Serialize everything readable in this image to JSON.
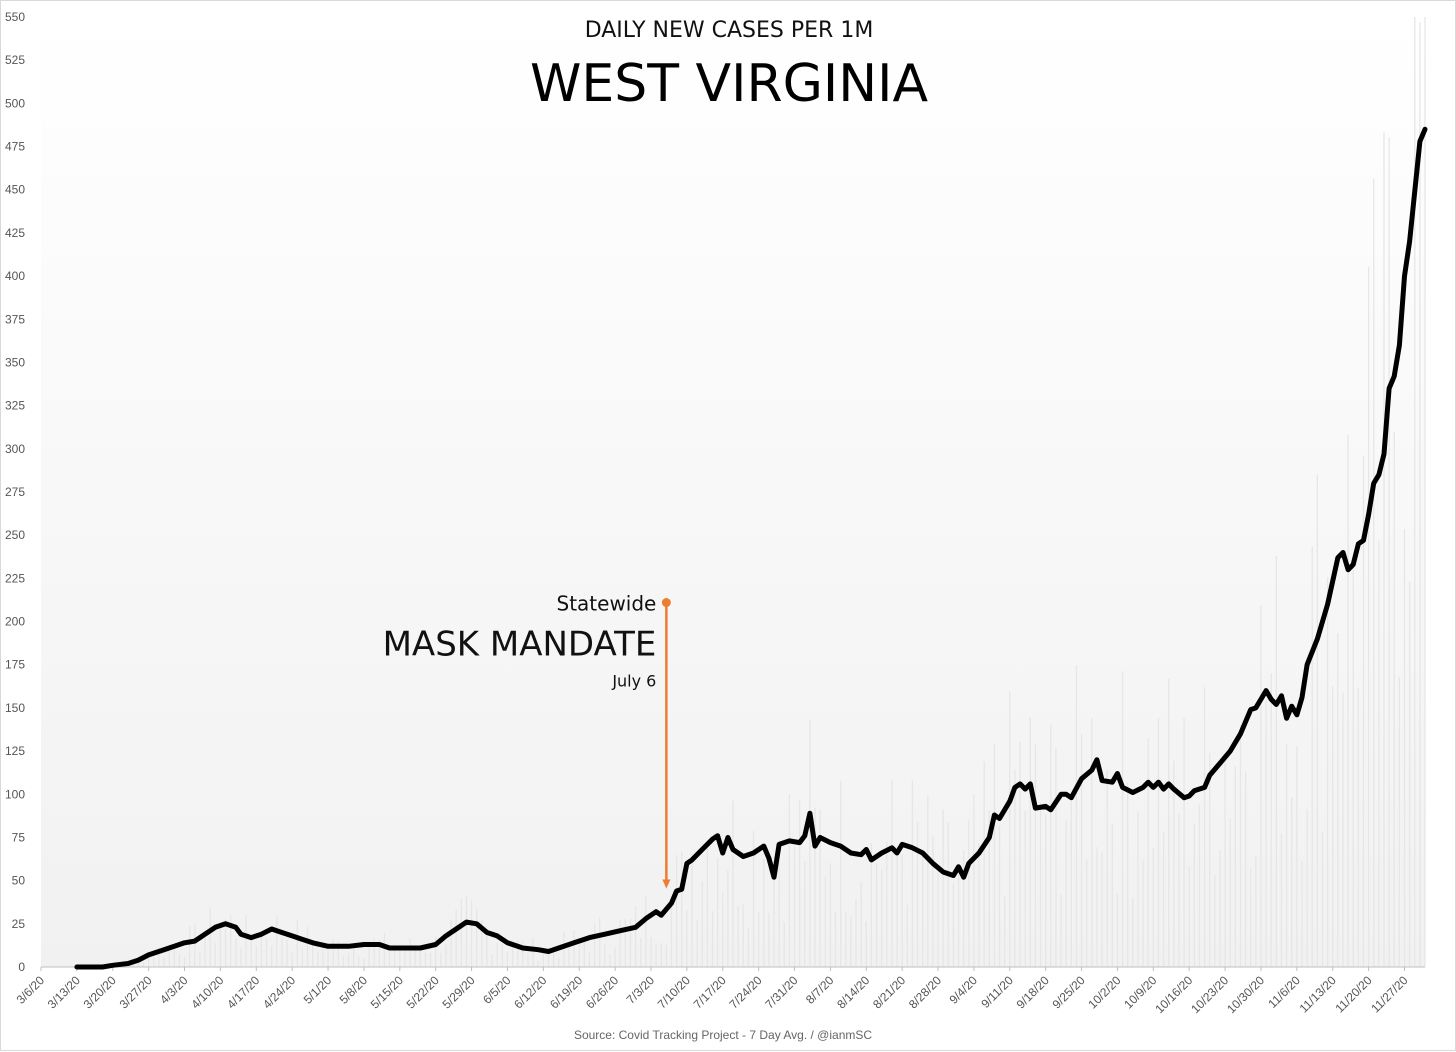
{
  "chart_data": {
    "type": "line",
    "title": "WEST VIRGINIA",
    "subtitle": "DAILY NEW CASES PER 1M",
    "source": "Source: Covid Tracking Project - 7 Day Avg. / @ianmSC",
    "ylim": [
      0,
      550
    ],
    "yticks": [
      0,
      25,
      50,
      75,
      100,
      125,
      150,
      175,
      200,
      225,
      250,
      275,
      300,
      325,
      350,
      375,
      400,
      425,
      450,
      475,
      500,
      525,
      550
    ],
    "xlim": [
      "2020-03-06",
      "2020-12-01"
    ],
    "xtick_labels": [
      "3/6/20",
      "3/13/20",
      "3/20/20",
      "3/27/20",
      "4/3/20",
      "4/10/20",
      "4/17/20",
      "4/24/20",
      "5/1/20",
      "5/8/20",
      "5/15/20",
      "5/22/20",
      "5/29/20",
      "6/5/20",
      "6/12/20",
      "6/19/20",
      "6/26/20",
      "7/3/20",
      "7/10/20",
      "7/17/20",
      "7/24/20",
      "7/31/20",
      "8/7/20",
      "8/14/20",
      "8/21/20",
      "8/28/20",
      "9/4/20",
      "9/11/20",
      "9/18/20",
      "9/25/20",
      "10/2/20",
      "10/9/20",
      "10/16/20",
      "10/23/20",
      "10/30/20",
      "11/6/20",
      "11/13/20",
      "11/20/20",
      "11/27/20"
    ],
    "grid": false,
    "legend": "none",
    "series": [
      {
        "color": "#000000",
        "points": [
          [
            "2020-03-13",
            0
          ],
          [
            "2020-03-18",
            0
          ],
          [
            "2020-03-20",
            1
          ],
          [
            "2020-03-23",
            2
          ],
          [
            "2020-03-25",
            4
          ],
          [
            "2020-03-27",
            7
          ],
          [
            "2020-03-30",
            10
          ],
          [
            "2020-04-01",
            12
          ],
          [
            "2020-04-03",
            14
          ],
          [
            "2020-04-05",
            15
          ],
          [
            "2020-04-07",
            19
          ],
          [
            "2020-04-09",
            23
          ],
          [
            "2020-04-11",
            25
          ],
          [
            "2020-04-13",
            23
          ],
          [
            "2020-04-14",
            19
          ],
          [
            "2020-04-16",
            17
          ],
          [
            "2020-04-18",
            19
          ],
          [
            "2020-04-20",
            22
          ],
          [
            "2020-04-22",
            20
          ],
          [
            "2020-04-24",
            18
          ],
          [
            "2020-04-26",
            16
          ],
          [
            "2020-04-28",
            14
          ],
          [
            "2020-05-01",
            12
          ],
          [
            "2020-05-05",
            12
          ],
          [
            "2020-05-08",
            13
          ],
          [
            "2020-05-11",
            13
          ],
          [
            "2020-05-13",
            11
          ],
          [
            "2020-05-16",
            11
          ],
          [
            "2020-05-19",
            11
          ],
          [
            "2020-05-22",
            13
          ],
          [
            "2020-05-24",
            18
          ],
          [
            "2020-05-26",
            22
          ],
          [
            "2020-05-28",
            26
          ],
          [
            "2020-05-30",
            25
          ],
          [
            "2020-06-01",
            20
          ],
          [
            "2020-06-03",
            18
          ],
          [
            "2020-06-05",
            14
          ],
          [
            "2020-06-08",
            11
          ],
          [
            "2020-06-11",
            10
          ],
          [
            "2020-06-13",
            9
          ],
          [
            "2020-06-15",
            11
          ],
          [
            "2020-06-18",
            14
          ],
          [
            "2020-06-21",
            17
          ],
          [
            "2020-06-24",
            19
          ],
          [
            "2020-06-27",
            21
          ],
          [
            "2020-06-30",
            23
          ],
          [
            "2020-07-02",
            28
          ],
          [
            "2020-07-04",
            32
          ],
          [
            "2020-07-05",
            30
          ],
          [
            "2020-07-07",
            37
          ],
          [
            "2020-07-08",
            44
          ],
          [
            "2020-07-09",
            45
          ],
          [
            "2020-07-10",
            60
          ],
          [
            "2020-07-11",
            62
          ],
          [
            "2020-07-13",
            68
          ],
          [
            "2020-07-15",
            74
          ],
          [
            "2020-07-16",
            76
          ],
          [
            "2020-07-17",
            66
          ],
          [
            "2020-07-18",
            75
          ],
          [
            "2020-07-19",
            68
          ],
          [
            "2020-07-21",
            64
          ],
          [
            "2020-07-23",
            66
          ],
          [
            "2020-07-25",
            70
          ],
          [
            "2020-07-26",
            63
          ],
          [
            "2020-07-27",
            52
          ],
          [
            "2020-07-28",
            71
          ],
          [
            "2020-07-30",
            73
          ],
          [
            "2020-08-01",
            72
          ],
          [
            "2020-08-02",
            76
          ],
          [
            "2020-08-03",
            89
          ],
          [
            "2020-08-04",
            70
          ],
          [
            "2020-08-05",
            75
          ],
          [
            "2020-08-07",
            72
          ],
          [
            "2020-08-09",
            70
          ],
          [
            "2020-08-11",
            66
          ],
          [
            "2020-08-13",
            65
          ],
          [
            "2020-08-14",
            68
          ],
          [
            "2020-08-15",
            62
          ],
          [
            "2020-08-17",
            66
          ],
          [
            "2020-08-19",
            69
          ],
          [
            "2020-08-20",
            66
          ],
          [
            "2020-08-21",
            71
          ],
          [
            "2020-08-23",
            69
          ],
          [
            "2020-08-25",
            66
          ],
          [
            "2020-08-27",
            60
          ],
          [
            "2020-08-29",
            55
          ],
          [
            "2020-08-31",
            53
          ],
          [
            "2020-09-01",
            58
          ],
          [
            "2020-09-02",
            52
          ],
          [
            "2020-09-03",
            60
          ],
          [
            "2020-09-05",
            66
          ],
          [
            "2020-09-07",
            75
          ],
          [
            "2020-09-08",
            88
          ],
          [
            "2020-09-09",
            86
          ],
          [
            "2020-09-11",
            96
          ],
          [
            "2020-09-12",
            104
          ],
          [
            "2020-09-13",
            106
          ],
          [
            "2020-09-14",
            103
          ],
          [
            "2020-09-15",
            106
          ],
          [
            "2020-09-16",
            92
          ],
          [
            "2020-09-18",
            93
          ],
          [
            "2020-09-19",
            91
          ],
          [
            "2020-09-21",
            100
          ],
          [
            "2020-09-22",
            100
          ],
          [
            "2020-09-23",
            98
          ],
          [
            "2020-09-25",
            109
          ],
          [
            "2020-09-27",
            114
          ],
          [
            "2020-09-28",
            120
          ],
          [
            "2020-09-29",
            108
          ],
          [
            "2020-10-01",
            107
          ],
          [
            "2020-10-02",
            112
          ],
          [
            "2020-10-03",
            104
          ],
          [
            "2020-10-05",
            101
          ],
          [
            "2020-10-07",
            104
          ],
          [
            "2020-10-08",
            107
          ],
          [
            "2020-10-09",
            104
          ],
          [
            "2020-10-10",
            107
          ],
          [
            "2020-10-11",
            103
          ],
          [
            "2020-10-12",
            106
          ],
          [
            "2020-10-13",
            103
          ],
          [
            "2020-10-15",
            98
          ],
          [
            "2020-10-16",
            99
          ],
          [
            "2020-10-17",
            102
          ],
          [
            "2020-10-19",
            104
          ],
          [
            "2020-10-20",
            111
          ],
          [
            "2020-10-22",
            118
          ],
          [
            "2020-10-24",
            125
          ],
          [
            "2020-10-26",
            135
          ],
          [
            "2020-10-28",
            149
          ],
          [
            "2020-10-29",
            150
          ],
          [
            "2020-10-31",
            160
          ],
          [
            "2020-11-01",
            155
          ],
          [
            "2020-11-02",
            152
          ],
          [
            "2020-11-03",
            157
          ],
          [
            "2020-11-04",
            144
          ],
          [
            "2020-11-05",
            151
          ],
          [
            "2020-11-06",
            146
          ],
          [
            "2020-11-07",
            156
          ],
          [
            "2020-11-08",
            175
          ],
          [
            "2020-11-10",
            190
          ],
          [
            "2020-11-12",
            210
          ],
          [
            "2020-11-14",
            237
          ],
          [
            "2020-11-15",
            240
          ],
          [
            "2020-11-16",
            230
          ],
          [
            "2020-11-17",
            233
          ],
          [
            "2020-11-18",
            245
          ],
          [
            "2020-11-19",
            247
          ],
          [
            "2020-11-20",
            262
          ],
          [
            "2020-11-21",
            280
          ],
          [
            "2020-11-22",
            285
          ],
          [
            "2020-11-23",
            297
          ],
          [
            "2020-11-24",
            335
          ],
          [
            "2020-11-25",
            342
          ],
          [
            "2020-11-26",
            360
          ],
          [
            "2020-11-27",
            400
          ],
          [
            "2020-11-28",
            420
          ],
          [
            "2020-11-30",
            478
          ],
          [
            "2020-12-01",
            485
          ]
        ]
      }
    ],
    "annotation": {
      "date": "2020-07-06",
      "from_value": 211,
      "to_value": 46,
      "line1": "Statewide",
      "line2": "MASK MANDATE",
      "line3": "July 6",
      "color": "#ed7d31"
    },
    "background_bars_color": "#e6e6e6"
  }
}
